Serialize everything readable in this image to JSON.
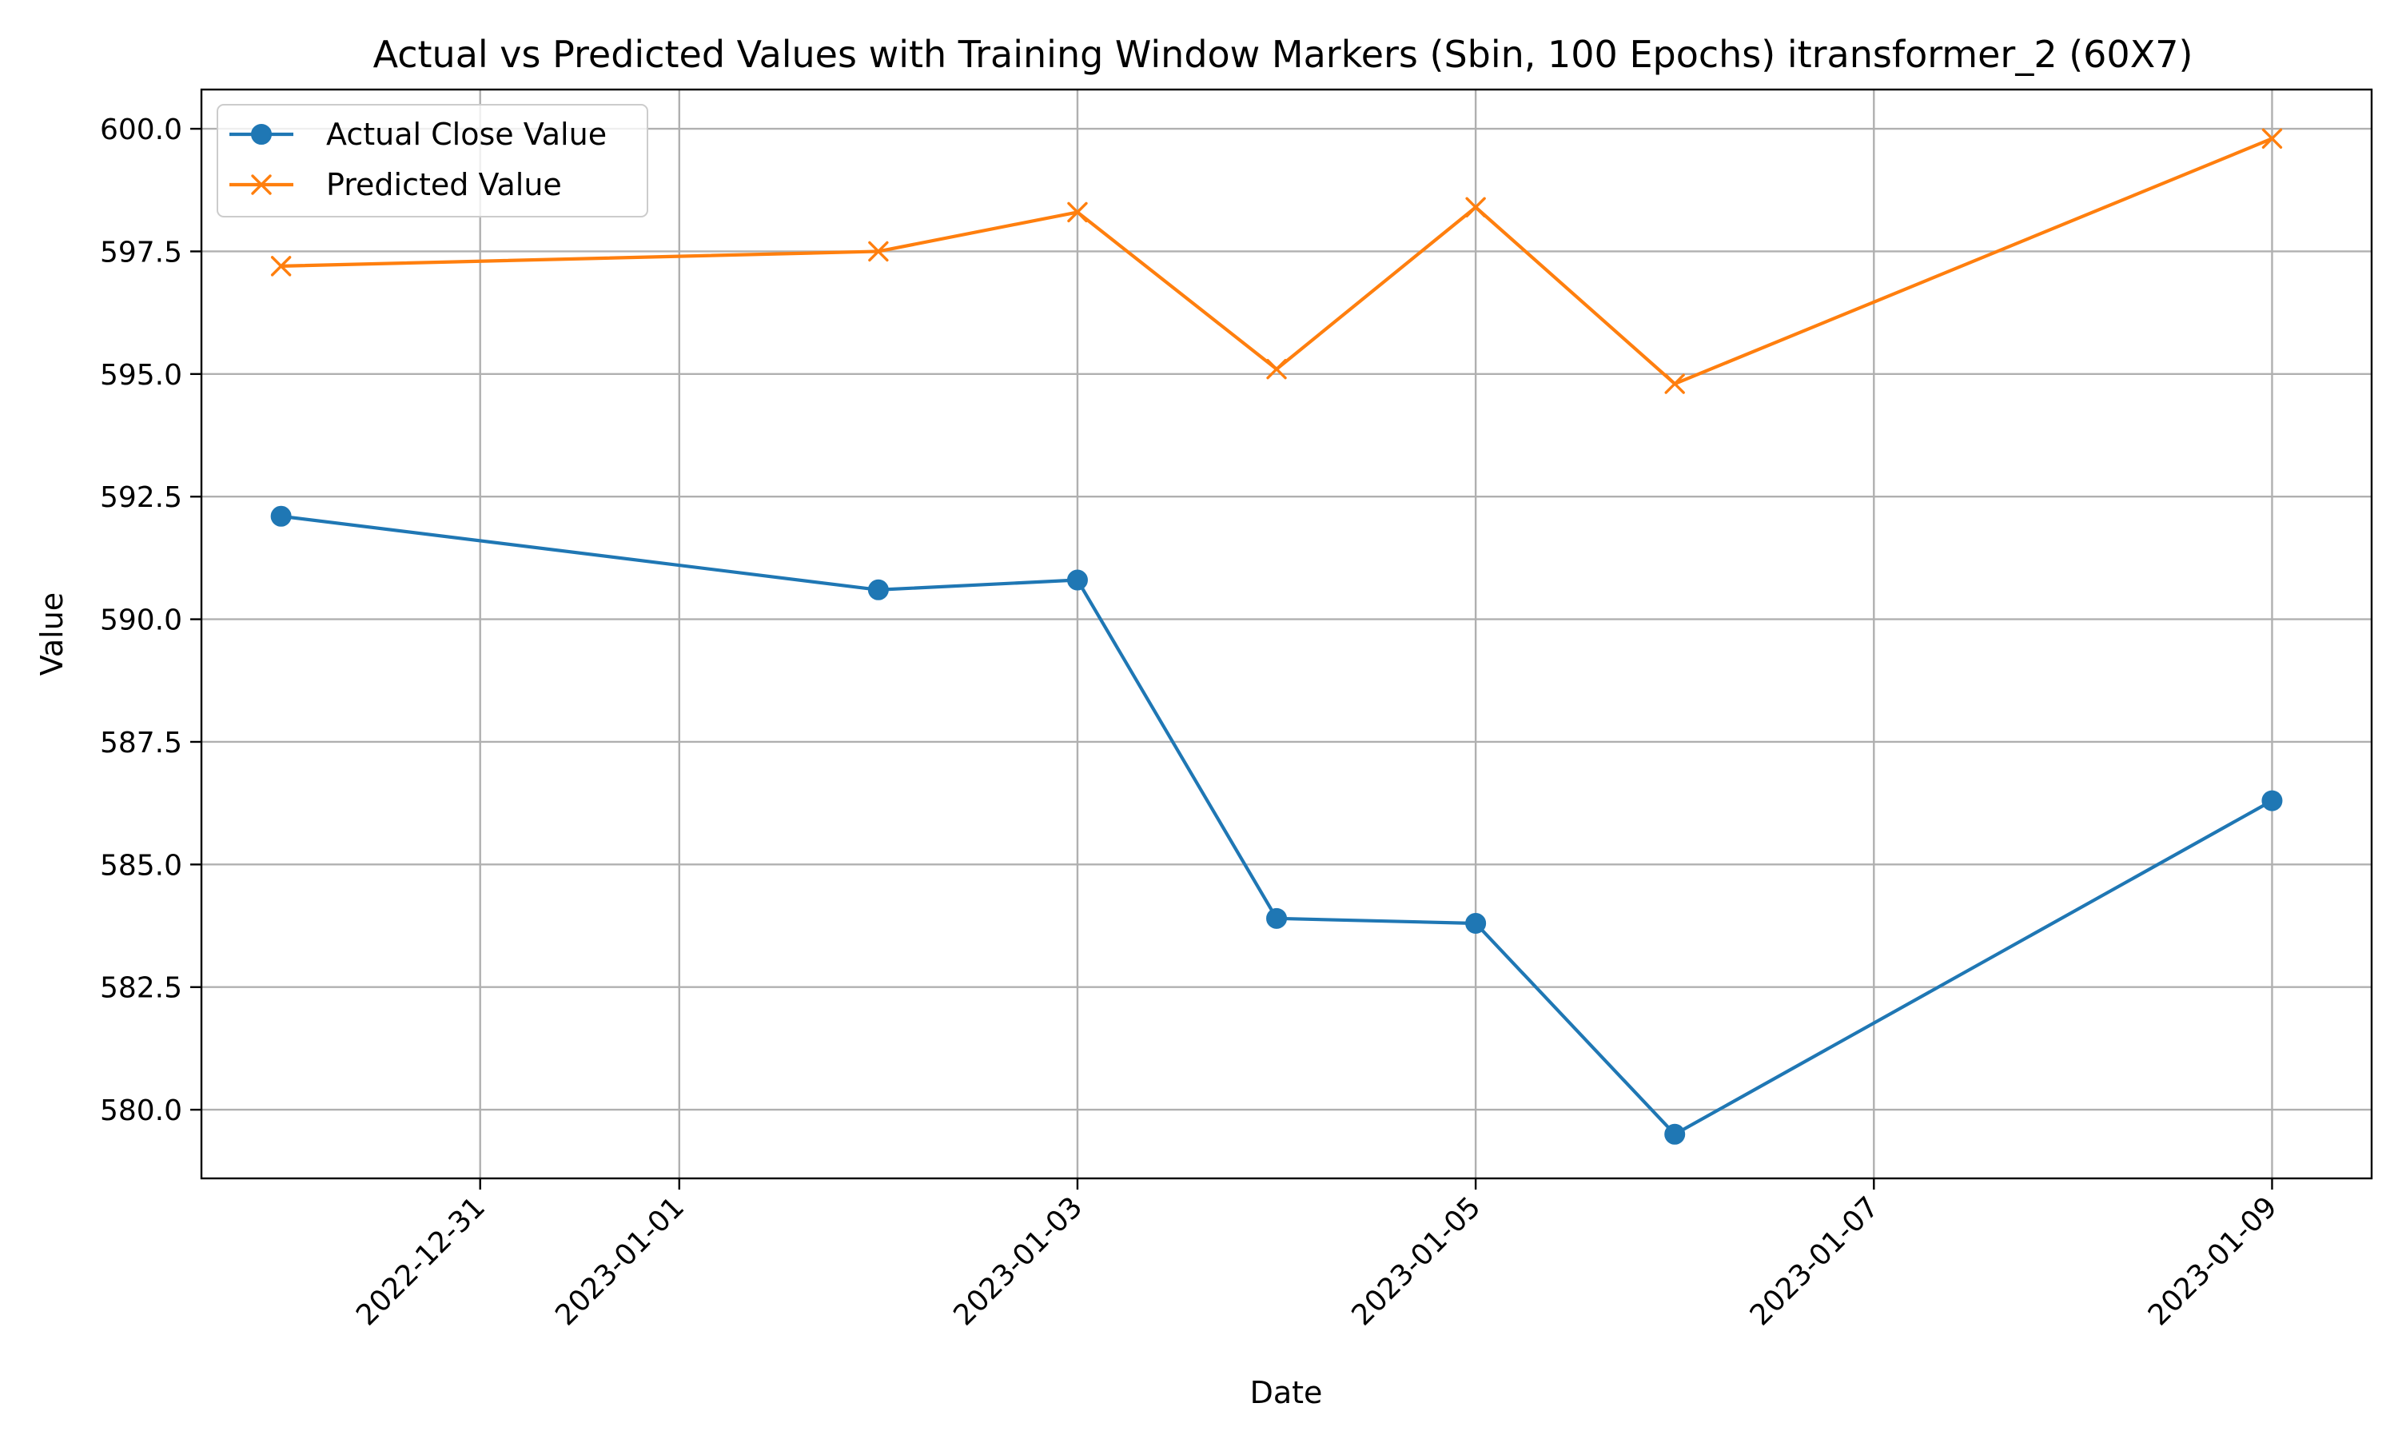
{
  "chart_data": {
    "type": "line",
    "title": "Actual vs Predicted Values with Training Window Markers (Sbin, 100 Epochs) itransformer_2 (60X7)",
    "xlabel": "Date",
    "ylabel": "Value",
    "x_type": "date",
    "xlim": [
      "2022-12-29T14:24",
      "2023-01-09T12:00"
    ],
    "ylim": [
      578.6,
      600.8
    ],
    "x_ticks": [
      "2022-12-31",
      "2023-01-01",
      "2023-01-03",
      "2023-01-05",
      "2023-01-07",
      "2023-01-09"
    ],
    "y_ticks": [
      580.0,
      582.5,
      585.0,
      587.5,
      590.0,
      592.5,
      595.0,
      597.5,
      600.0
    ],
    "y_tick_labels": [
      "580.0",
      "582.5",
      "585.0",
      "587.5",
      "590.0",
      "592.5",
      "595.0",
      "597.5",
      "600.0"
    ],
    "x": [
      "2022-12-30",
      "2023-01-02",
      "2023-01-03",
      "2023-01-04",
      "2023-01-05",
      "2023-01-06",
      "2023-01-09"
    ],
    "grid": true,
    "legend_position": "upper-left",
    "series": [
      {
        "name": "Actual Close Value",
        "values": [
          592.1,
          590.6,
          590.8,
          583.9,
          583.8,
          579.5,
          586.3
        ],
        "color": "#1f77b4",
        "marker": "circle"
      },
      {
        "name": "Predicted Value",
        "values": [
          597.2,
          597.5,
          598.3,
          595.1,
          598.4,
          594.8,
          599.8
        ],
        "color": "#ff7f0e",
        "marker": "x"
      }
    ]
  }
}
